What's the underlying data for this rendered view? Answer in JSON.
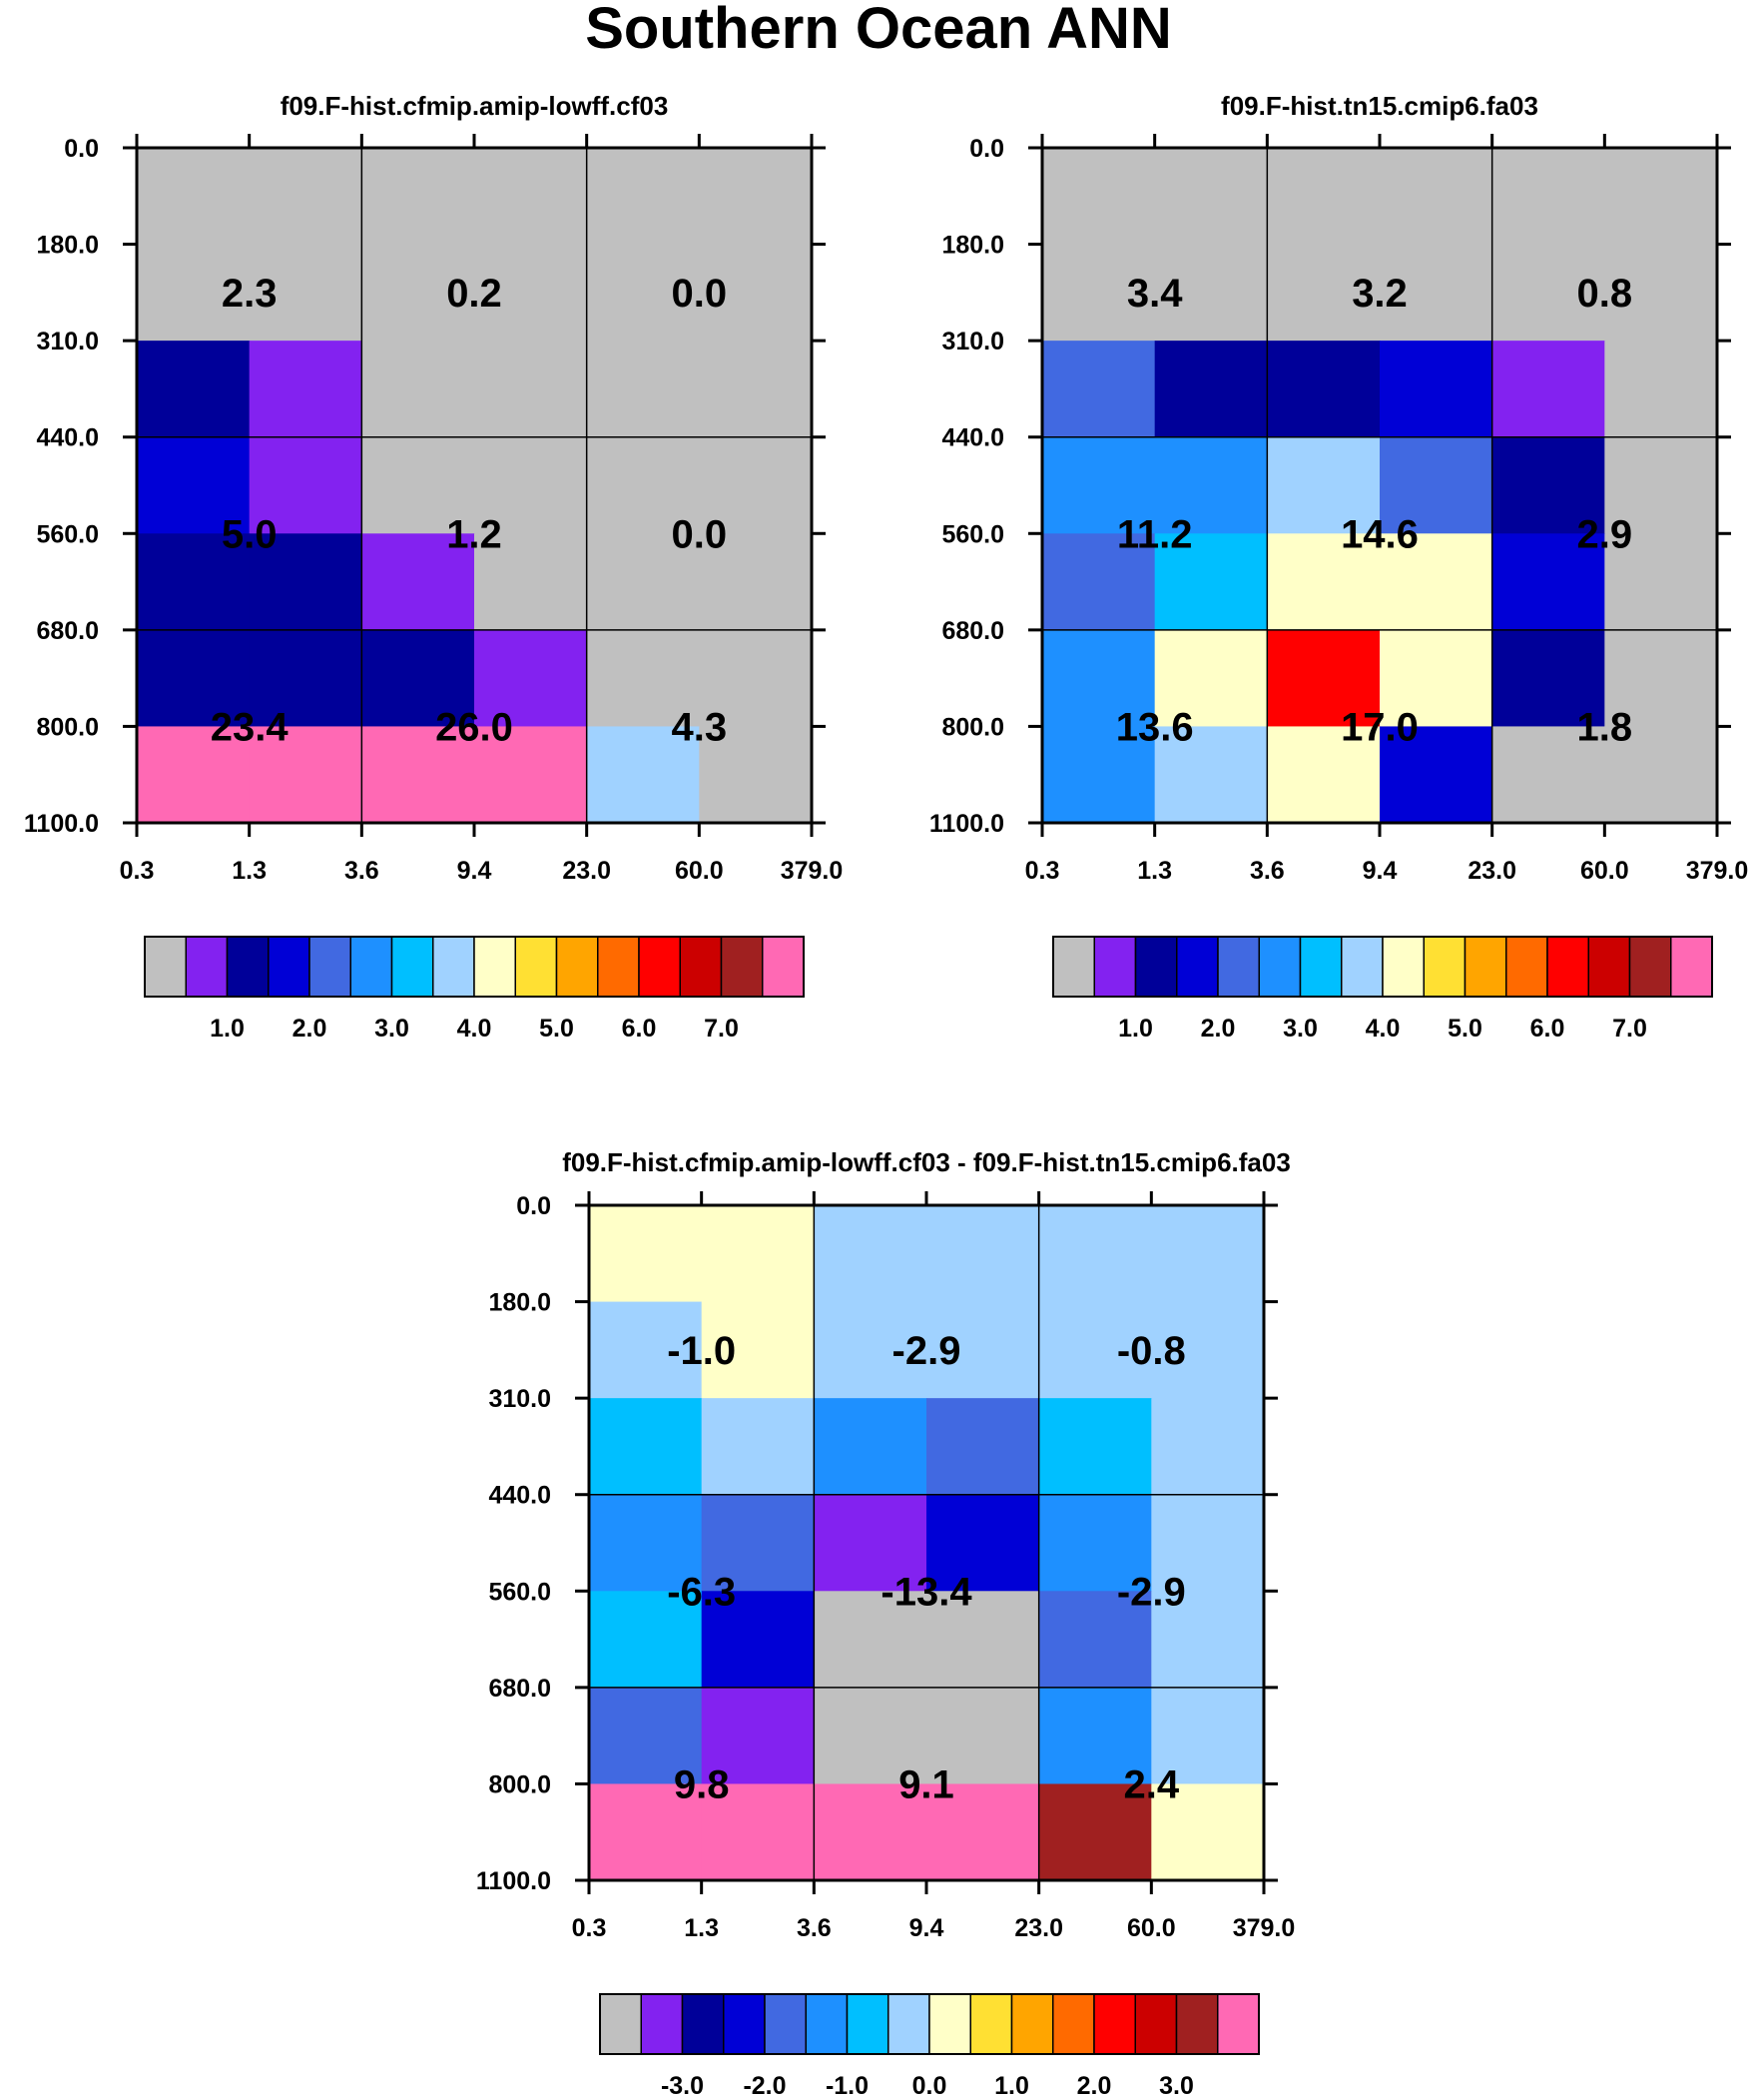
{
  "figure_title": "Southern Ocean ANN",
  "colors": {
    "gray": "#c0c0c0",
    "violet": "#8322f0",
    "navy": "#000099",
    "blue": "#0000d6",
    "royal": "#4169e1",
    "dodger": "#1e90ff",
    "sky": "#00bfff",
    "lightsky": "#a0d2ff",
    "cream": "#ffffc8",
    "gold": "#ffe033",
    "orange": "#ffa500",
    "darkorange": "#ff6a00",
    "red": "#ff0000",
    "crimson": "#cc0000",
    "brown": "#a02020",
    "pink": "#ff69b4"
  },
  "chart_data": [
    {
      "type": "heatmap",
      "title": "f09.F-hist.cfmip.amip-lowff.cf03",
      "x_ticks": [
        "0.3",
        "1.3",
        "3.6",
        "9.4",
        "23.0",
        "60.0",
        "379.0"
      ],
      "y_ticks": [
        "0.0",
        "180.0",
        "310.0",
        "440.0",
        "560.0",
        "680.0",
        "800.0",
        "1100.0"
      ],
      "fine_cells": [
        [
          "gray",
          "gray",
          "gray",
          "gray",
          "gray",
          "gray"
        ],
        [
          "gray",
          "gray",
          "gray",
          "gray",
          "gray",
          "gray"
        ],
        [
          "navy",
          "violet",
          "gray",
          "gray",
          "gray",
          "gray"
        ],
        [
          "blue",
          "violet",
          "gray",
          "gray",
          "gray",
          "gray"
        ],
        [
          "navy",
          "navy",
          "violet",
          "gray",
          "gray",
          "gray"
        ],
        [
          "navy",
          "navy",
          "navy",
          "violet",
          "gray",
          "gray"
        ],
        [
          "pink",
          "pink",
          "pink",
          "pink",
          "lightsky",
          "gray"
        ]
      ],
      "region_values": [
        [
          "2.3",
          "0.2",
          "0.0"
        ],
        [
          "5.0",
          "1.2",
          "0.0"
        ],
        [
          "23.4",
          "26.0",
          "4.3"
        ]
      ],
      "colorbar": {
        "colors": [
          "gray",
          "violet",
          "navy",
          "blue",
          "royal",
          "dodger",
          "sky",
          "lightsky",
          "cream",
          "gold",
          "orange",
          "darkorange",
          "red",
          "crimson",
          "brown",
          "pink"
        ],
        "labels": [
          "1.0",
          "2.0",
          "3.0",
          "4.0",
          "5.0",
          "6.0",
          "7.0"
        ],
        "label_boundaries": [
          2,
          4,
          6,
          8,
          10,
          12,
          14
        ]
      }
    },
    {
      "type": "heatmap",
      "title": "f09.F-hist.tn15.cmip6.fa03",
      "x_ticks": [
        "0.3",
        "1.3",
        "3.6",
        "9.4",
        "23.0",
        "60.0",
        "379.0"
      ],
      "y_ticks": [
        "0.0",
        "180.0",
        "310.0",
        "440.0",
        "560.0",
        "680.0",
        "800.0",
        "1100.0"
      ],
      "fine_cells": [
        [
          "gray",
          "gray",
          "gray",
          "gray",
          "gray",
          "gray"
        ],
        [
          "gray",
          "gray",
          "gray",
          "gray",
          "gray",
          "gray"
        ],
        [
          "royal",
          "navy",
          "navy",
          "blue",
          "violet",
          "gray"
        ],
        [
          "dodger",
          "dodger",
          "lightsky",
          "royal",
          "navy",
          "gray"
        ],
        [
          "royal",
          "sky",
          "cream",
          "cream",
          "blue",
          "gray"
        ],
        [
          "dodger",
          "cream",
          "red",
          "cream",
          "navy",
          "gray"
        ],
        [
          "dodger",
          "lightsky",
          "cream",
          "blue",
          "gray",
          "gray"
        ]
      ],
      "region_values": [
        [
          "3.4",
          "3.2",
          "0.8"
        ],
        [
          "11.2",
          "14.6",
          "2.9"
        ],
        [
          "13.6",
          "17.0",
          "1.8"
        ]
      ],
      "colorbar": {
        "colors": [
          "gray",
          "violet",
          "navy",
          "blue",
          "royal",
          "dodger",
          "sky",
          "lightsky",
          "cream",
          "gold",
          "orange",
          "darkorange",
          "red",
          "crimson",
          "brown",
          "pink"
        ],
        "labels": [
          "1.0",
          "2.0",
          "3.0",
          "4.0",
          "5.0",
          "6.0",
          "7.0"
        ],
        "label_boundaries": [
          2,
          4,
          6,
          8,
          10,
          12,
          14
        ]
      }
    },
    {
      "type": "heatmap",
      "title": "f09.F-hist.cfmip.amip-lowff.cf03 - f09.F-hist.tn15.cmip6.fa03",
      "x_ticks": [
        "0.3",
        "1.3",
        "3.6",
        "9.4",
        "23.0",
        "60.0",
        "379.0"
      ],
      "y_ticks": [
        "0.0",
        "180.0",
        "310.0",
        "440.0",
        "560.0",
        "680.0",
        "800.0",
        "1100.0"
      ],
      "fine_cells": [
        [
          "cream",
          "cream",
          "lightsky",
          "lightsky",
          "lightsky",
          "lightsky"
        ],
        [
          "lightsky",
          "cream",
          "lightsky",
          "lightsky",
          "lightsky",
          "lightsky"
        ],
        [
          "sky",
          "lightsky",
          "dodger",
          "royal",
          "sky",
          "lightsky"
        ],
        [
          "dodger",
          "royal",
          "violet",
          "blue",
          "dodger",
          "lightsky"
        ],
        [
          "sky",
          "blue",
          "gray",
          "gray",
          "royal",
          "lightsky"
        ],
        [
          "royal",
          "violet",
          "gray",
          "gray",
          "dodger",
          "lightsky"
        ],
        [
          "pink",
          "pink",
          "pink",
          "pink",
          "brown",
          "cream"
        ]
      ],
      "region_values": [
        [
          "-1.0",
          "-2.9",
          "-0.8"
        ],
        [
          "-6.3",
          "-13.4",
          "-2.9"
        ],
        [
          "9.8",
          "9.1",
          "2.4"
        ]
      ],
      "colorbar": {
        "colors": [
          "gray",
          "violet",
          "navy",
          "blue",
          "royal",
          "dodger",
          "sky",
          "lightsky",
          "cream",
          "gold",
          "orange",
          "darkorange",
          "red",
          "crimson",
          "brown",
          "pink"
        ],
        "labels": [
          "-3.0",
          "-2.0",
          "-1.0",
          "0.0",
          "1.0",
          "2.0",
          "3.0"
        ],
        "label_boundaries": [
          2,
          4,
          6,
          8,
          10,
          12,
          14
        ]
      }
    }
  ]
}
